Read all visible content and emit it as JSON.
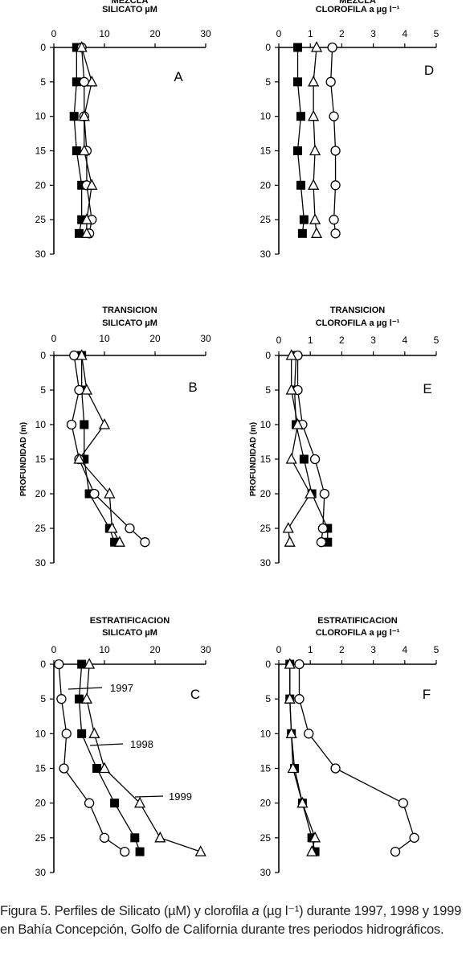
{
  "chart_data": [
    {
      "id": "A",
      "type": "scatter",
      "title": [
        "MEZCLA",
        "SILICATO µM"
      ],
      "panel_label": "A",
      "x_ticks": [
        "0",
        "10",
        "20",
        "30"
      ],
      "xlim": [
        0,
        30
      ],
      "y_ticks": [
        "0",
        "5",
        "10",
        "15",
        "20",
        "25",
        "30"
      ],
      "ylim": [
        0,
        30
      ],
      "ylabel": "",
      "series": [
        {
          "marker": "square",
          "points": [
            [
              4.5,
              0
            ],
            [
              4.5,
              5
            ],
            [
              4.0,
              10
            ],
            [
              4.5,
              15
            ],
            [
              5.5,
              20
            ],
            [
              5.5,
              25
            ],
            [
              5.0,
              27
            ]
          ]
        },
        {
          "marker": "circle",
          "points": [
            [
              5.5,
              0
            ],
            [
              6.0,
              5
            ],
            [
              6.0,
              10
            ],
            [
              6.5,
              15
            ],
            [
              6.5,
              20
            ],
            [
              7.5,
              25
            ],
            [
              7.0,
              27
            ]
          ]
        },
        {
          "marker": "triangle",
          "points": [
            [
              5.5,
              0
            ],
            [
              7.5,
              5
            ],
            [
              6.0,
              10
            ],
            [
              6.0,
              15
            ],
            [
              7.5,
              20
            ],
            [
              6.5,
              25
            ],
            [
              6.5,
              27
            ]
          ]
        }
      ]
    },
    {
      "id": "D",
      "type": "scatter",
      "title": [
        "MEZCLA",
        "CLOROFILA a µg l⁻¹"
      ],
      "panel_label": "D",
      "x_ticks": [
        "0",
        "1",
        "2",
        "3",
        "4",
        "5"
      ],
      "xlim": [
        0,
        5
      ],
      "y_ticks": [
        "0",
        "5",
        "10",
        "15",
        "20",
        "25",
        "30"
      ],
      "ylim": [
        0,
        30
      ],
      "ylabel": "",
      "series": [
        {
          "marker": "square",
          "points": [
            [
              0.6,
              0
            ],
            [
              0.6,
              5
            ],
            [
              0.7,
              10
            ],
            [
              0.6,
              15
            ],
            [
              0.7,
              20
            ],
            [
              0.8,
              25
            ],
            [
              0.75,
              27
            ]
          ]
        },
        {
          "marker": "circle",
          "points": [
            [
              1.7,
              0
            ],
            [
              1.65,
              5
            ],
            [
              1.75,
              10
            ],
            [
              1.8,
              15
            ],
            [
              1.8,
              20
            ],
            [
              1.75,
              25
            ],
            [
              1.8,
              27
            ]
          ]
        },
        {
          "marker": "triangle",
          "points": [
            [
              1.2,
              0
            ],
            [
              1.1,
              5
            ],
            [
              1.1,
              10
            ],
            [
              1.15,
              15
            ],
            [
              1.1,
              20
            ],
            [
              1.15,
              25
            ],
            [
              1.2,
              27
            ]
          ]
        }
      ]
    },
    {
      "id": "B",
      "type": "scatter",
      "title": [
        "TRANSICION",
        "SILICATO µM"
      ],
      "panel_label": "B",
      "x_ticks": [
        "0",
        "10",
        "20",
        "30"
      ],
      "xlim": [
        0,
        30
      ],
      "y_ticks": [
        "0",
        "5",
        "10",
        "15",
        "20",
        "25",
        "30"
      ],
      "ylim": [
        0,
        30
      ],
      "ylabel": "PROFUNDIDAD (m)",
      "series": [
        {
          "marker": "square",
          "points": [
            [
              5.5,
              0
            ],
            [
              5.5,
              5
            ],
            [
              6.0,
              10
            ],
            [
              6.0,
              15
            ],
            [
              7.0,
              20
            ],
            [
              11.0,
              25
            ],
            [
              12.0,
              27
            ]
          ]
        },
        {
          "marker": "circle",
          "points": [
            [
              4.0,
              0
            ],
            [
              5.0,
              5
            ],
            [
              3.5,
              10
            ],
            [
              5.0,
              15
            ],
            [
              8.0,
              20
            ],
            [
              15.0,
              25
            ],
            [
              18.0,
              27
            ]
          ]
        },
        {
          "marker": "triangle",
          "points": [
            [
              5.5,
              0
            ],
            [
              6.5,
              5
            ],
            [
              10.0,
              10
            ],
            [
              5.0,
              15
            ],
            [
              11.0,
              20
            ],
            [
              11.5,
              25
            ],
            [
              13.0,
              27
            ]
          ]
        }
      ]
    },
    {
      "id": "E",
      "type": "scatter",
      "title": [
        "TRANSICION",
        "CLOROFILA a µg l⁻¹"
      ],
      "panel_label": "E",
      "x_ticks": [
        "0",
        "1",
        "2",
        "3",
        "4",
        "5"
      ],
      "xlim": [
        0,
        5
      ],
      "y_ticks": [
        "0",
        "5",
        "10",
        "15",
        "20",
        "25",
        "30"
      ],
      "ylim": [
        0,
        30
      ],
      "ylabel": "PROFUNDIDAD (m)",
      "series": [
        {
          "marker": "square",
          "points": [
            [
              0.55,
              0
            ],
            [
              0.5,
              5
            ],
            [
              0.55,
              10
            ],
            [
              0.8,
              15
            ],
            [
              1.05,
              20
            ],
            [
              1.55,
              25
            ],
            [
              1.55,
              27
            ]
          ]
        },
        {
          "marker": "circle",
          "points": [
            [
              0.6,
              0
            ],
            [
              0.6,
              5
            ],
            [
              0.75,
              10
            ],
            [
              1.15,
              15
            ],
            [
              1.45,
              20
            ],
            [
              1.4,
              25
            ],
            [
              1.35,
              27
            ]
          ]
        },
        {
          "marker": "triangle",
          "points": [
            [
              0.4,
              0
            ],
            [
              0.4,
              5
            ],
            [
              0.6,
              10
            ],
            [
              0.4,
              15
            ],
            [
              1.0,
              20
            ],
            [
              0.3,
              25
            ],
            [
              0.35,
              27
            ]
          ]
        }
      ]
    },
    {
      "id": "C",
      "type": "scatter",
      "title": [
        "ESTRATIFICACION",
        "SILICATO µM"
      ],
      "panel_label": "C",
      "x_ticks": [
        "0",
        "10",
        "20",
        "30"
      ],
      "xlim": [
        0,
        30
      ],
      "y_ticks": [
        "0",
        "5",
        "10",
        "15",
        "20",
        "25",
        "30"
      ],
      "ylim": [
        0,
        30
      ],
      "ylabel": "",
      "annotations": [
        "1997",
        "1998",
        "1999"
      ],
      "series": [
        {
          "marker": "square",
          "points": [
            [
              5.5,
              0
            ],
            [
              5.0,
              5
            ],
            [
              5.5,
              10
            ],
            [
              8.5,
              15
            ],
            [
              12.0,
              20
            ],
            [
              16.0,
              25
            ],
            [
              17.0,
              27
            ]
          ]
        },
        {
          "marker": "circle",
          "points": [
            [
              1.0,
              0
            ],
            [
              1.5,
              5
            ],
            [
              2.5,
              10
            ],
            [
              2.0,
              15
            ],
            [
              7.0,
              20
            ],
            [
              10.0,
              25
            ],
            [
              14.0,
              27
            ]
          ]
        },
        {
          "marker": "triangle",
          "points": [
            [
              7.0,
              0
            ],
            [
              6.5,
              5
            ],
            [
              8.0,
              10
            ],
            [
              10.0,
              15
            ],
            [
              17.0,
              20
            ],
            [
              21.0,
              25
            ],
            [
              29.0,
              27
            ]
          ]
        }
      ]
    },
    {
      "id": "F",
      "type": "scatter",
      "title": [
        "ESTRATIFICACION",
        "CLOROFILA a µg l⁻¹"
      ],
      "panel_label": "F",
      "x_ticks": [
        "0",
        "1",
        "2",
        "3",
        "4",
        "5"
      ],
      "xlim": [
        0,
        5
      ],
      "y_ticks": [
        "0",
        "5",
        "10",
        "15",
        "20",
        "25",
        "30"
      ],
      "ylim": [
        0,
        30
      ],
      "ylabel": "",
      "series": [
        {
          "marker": "square",
          "points": [
            [
              0.35,
              0
            ],
            [
              0.35,
              5
            ],
            [
              0.4,
              10
            ],
            [
              0.5,
              15
            ],
            [
              0.75,
              20
            ],
            [
              1.05,
              25
            ],
            [
              1.15,
              27
            ]
          ]
        },
        {
          "marker": "circle",
          "points": [
            [
              0.65,
              0
            ],
            [
              0.65,
              5
            ],
            [
              0.95,
              10
            ],
            [
              1.8,
              15
            ],
            [
              3.95,
              20
            ],
            [
              4.3,
              25
            ],
            [
              3.7,
              27
            ]
          ]
        },
        {
          "marker": "triangle",
          "points": [
            [
              0.35,
              0
            ],
            [
              0.35,
              5
            ],
            [
              0.4,
              10
            ],
            [
              0.45,
              15
            ],
            [
              0.75,
              20
            ],
            [
              1.15,
              25
            ],
            [
              1.05,
              27
            ]
          ]
        }
      ]
    }
  ],
  "caption": {
    "prefix": "Figura 5. Perfiles de Silicato (µM) y clorofila ",
    "italic": "a",
    "suffix": " (µg l⁻¹) durante 1997, 1998 y 1999 en Bahía Concepción, Golfo de California durante tres periodos hidrográficos."
  }
}
